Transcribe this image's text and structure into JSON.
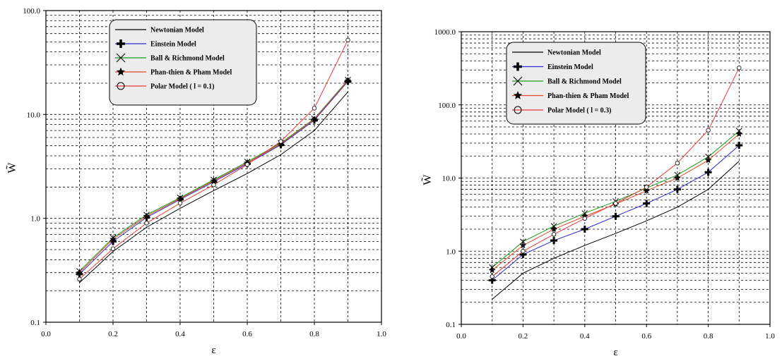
{
  "chart_data": [
    {
      "type": "line",
      "yscale": "log",
      "ylim": [
        0.1,
        100
      ],
      "xlim": [
        0,
        1
      ],
      "xlabel": "ε",
      "ylabel": "W̃",
      "grid": true,
      "legend_position": "top-left",
      "x_ticks": [
        "0.0",
        "0.2",
        "0.4",
        "0.6",
        "0.8",
        "1.0"
      ],
      "y_ticks": [
        "0.1",
        "1.0",
        "10.0",
        "100.0"
      ],
      "x": [
        0.1,
        0.2,
        0.3,
        0.4,
        0.5,
        0.6,
        0.7,
        0.8,
        0.9
      ],
      "series": [
        {
          "name": "Newtonian Model",
          "color": "#000000",
          "marker": "none",
          "values": [
            0.24,
            0.48,
            0.82,
            1.25,
            1.85,
            2.7,
            4.1,
            7.0,
            16.5
          ]
        },
        {
          "name": "Einstein Model",
          "color": "#2b2bd6",
          "marker": "plus",
          "values": [
            0.29,
            0.6,
            1.02,
            1.52,
            2.25,
            3.35,
            5.1,
            8.8,
            20.8
          ]
        },
        {
          "name": "Ball & Richmond Model",
          "color": "#1a9a1a",
          "marker": "cross",
          "values": [
            0.31,
            0.65,
            1.08,
            1.58,
            2.35,
            3.5,
            5.3,
            9.1,
            21.5
          ]
        },
        {
          "name": "Phan-thien & Pham Model",
          "color": "#e24a2a",
          "marker": "star",
          "values": [
            0.3,
            0.63,
            1.05,
            1.55,
            2.3,
            3.42,
            5.2,
            9.0,
            21.2
          ]
        },
        {
          "name": "Polar Model ( l = 0.1)",
          "color": "#e83a3a",
          "marker": "circle",
          "values": [
            0.26,
            0.51,
            0.9,
            1.4,
            2.1,
            3.3,
            5.5,
            11.5,
            52.0
          ]
        }
      ]
    },
    {
      "type": "line",
      "yscale": "log",
      "ylim": [
        0.1,
        1000
      ],
      "xlim": [
        0,
        1
      ],
      "xlabel": "ε",
      "ylabel": "W̃",
      "grid": true,
      "legend_position": "top-left",
      "x_ticks": [
        "0.0",
        "0.2",
        "0.4",
        "0.6",
        "0.8",
        "1.0"
      ],
      "y_ticks": [
        "0.1",
        "1.0",
        "10.0",
        "100.0",
        "1000.0"
      ],
      "x": [
        0.1,
        0.2,
        0.3,
        0.4,
        0.5,
        0.6,
        0.7,
        0.8,
        0.9
      ],
      "series": [
        {
          "name": "Newtonian Model",
          "color": "#000000",
          "marker": "none",
          "values": [
            0.22,
            0.5,
            0.8,
            1.2,
            1.75,
            2.6,
            4.0,
            7.0,
            17.0
          ]
        },
        {
          "name": "Einstein Model",
          "color": "#2b2bd6",
          "marker": "plus",
          "values": [
            0.4,
            0.9,
            1.4,
            2.0,
            3.0,
            4.5,
            7.0,
            12.0,
            28.0
          ]
        },
        {
          "name": "Ball & Richmond Model",
          "color": "#1a9a1a",
          "marker": "cross",
          "values": [
            0.6,
            1.35,
            2.2,
            3.3,
            4.8,
            7.3,
            11.0,
            19.5,
            44.0
          ]
        },
        {
          "name": "Phan-thien & Pham Model",
          "color": "#e24a2a",
          "marker": "star",
          "values": [
            0.55,
            1.2,
            2.0,
            3.0,
            4.4,
            6.7,
            10.0,
            17.5,
            40.0
          ]
        },
        {
          "name": "Polar Model ( l = 0.3)",
          "color": "#e83a3a",
          "marker": "circle",
          "values": [
            0.45,
            1.0,
            1.7,
            2.8,
            4.5,
            7.5,
            16.0,
            45.0,
            320.0
          ]
        }
      ]
    }
  ]
}
